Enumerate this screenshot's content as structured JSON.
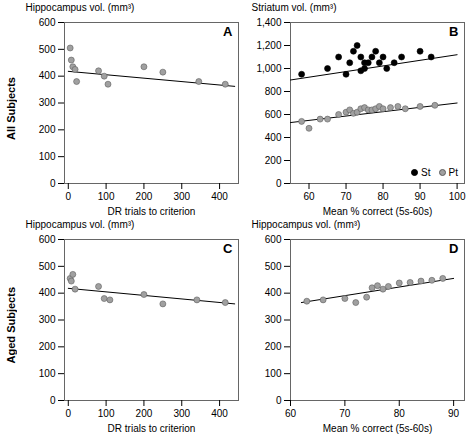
{
  "chart_data": [
    {
      "type": "scatter",
      "title": "A",
      "row_label": "All Subjects",
      "xlabel": "DR trials to criterion",
      "ylabel": "Hippocampus vol. (mm³)",
      "xlim": [
        -10,
        450
      ],
      "ylim": [
        0,
        600
      ],
      "xticks": [
        0,
        100,
        200,
        300,
        400
      ],
      "yticks": [
        0,
        100,
        200,
        300,
        400,
        500,
        600
      ],
      "series": [
        {
          "type": "scatter",
          "marker": "circle",
          "color": "#a0a0a0",
          "x": [
            5,
            8,
            12,
            18,
            22,
            80,
            95,
            105,
            200,
            250,
            345,
            415
          ],
          "values": [
            505,
            460,
            435,
            425,
            380,
            420,
            400,
            370,
            435,
            415,
            380,
            370
          ]
        },
        {
          "type": "line",
          "color": "#000000",
          "x": [
            0,
            440
          ],
          "values": [
            418,
            362
          ]
        }
      ]
    },
    {
      "type": "scatter",
      "title": "B",
      "xlabel": "Mean % correct (5s-60s)",
      "ylabel": "Striatum vol. (mm³)",
      "xlim": [
        55,
        102
      ],
      "ylim": [
        0,
        1400
      ],
      "xticks": [
        60,
        70,
        80,
        90,
        100
      ],
      "yticks": [
        0,
        200,
        400,
        600,
        800,
        1000,
        1200,
        1400
      ],
      "legend": "lower right",
      "series": [
        {
          "name": "St",
          "type": "scatter",
          "marker": "circle",
          "color": "#000000",
          "x": [
            58,
            65,
            68,
            70,
            71,
            72,
            73,
            74,
            74,
            75,
            75,
            76,
            77,
            78,
            79,
            80,
            81,
            83,
            85,
            90,
            93
          ],
          "values": [
            950,
            1000,
            1100,
            950,
            1050,
            1150,
            1200,
            980,
            1100,
            1000,
            1050,
            1050,
            1100,
            1150,
            1050,
            1100,
            1000,
            1050,
            1100,
            1150,
            1100
          ]
        },
        {
          "name": "Pt",
          "type": "scatter",
          "marker": "circle",
          "color": "#a0a0a0",
          "x": [
            58,
            60,
            63,
            65,
            68,
            70,
            71,
            72,
            73,
            74,
            75,
            76,
            77,
            78,
            79,
            80,
            82,
            84,
            86,
            90,
            94
          ],
          "values": [
            540,
            480,
            560,
            560,
            600,
            620,
            640,
            610,
            620,
            650,
            660,
            640,
            640,
            650,
            670,
            650,
            660,
            670,
            650,
            670,
            680
          ]
        },
        {
          "type": "line",
          "color": "#000000",
          "x": [
            55,
            100
          ],
          "values": [
            900,
            1120
          ]
        },
        {
          "type": "line",
          "color": "#000000",
          "x": [
            55,
            100
          ],
          "values": [
            530,
            700
          ]
        }
      ]
    },
    {
      "type": "scatter",
      "title": "C",
      "row_label": "Aged Subjects",
      "xlabel": "DR trials to criterion",
      "ylabel": "Hippocampus vol. (mm³)",
      "xlim": [
        -10,
        450
      ],
      "ylim": [
        0,
        600
      ],
      "xticks": [
        0,
        100,
        200,
        300,
        400
      ],
      "yticks": [
        0,
        100,
        200,
        300,
        400,
        500,
        600
      ],
      "series": [
        {
          "type": "scatter",
          "marker": "circle",
          "color": "#a0a0a0",
          "x": [
            5,
            8,
            12,
            18,
            80,
            95,
            110,
            200,
            250,
            340,
            415
          ],
          "values": [
            455,
            445,
            470,
            415,
            425,
            380,
            375,
            395,
            360,
            375,
            365
          ]
        },
        {
          "type": "line",
          "color": "#000000",
          "x": [
            0,
            440
          ],
          "values": [
            418,
            360
          ]
        }
      ]
    },
    {
      "type": "scatter",
      "title": "D",
      "xlabel": "Mean % correct (5s-60s)",
      "ylabel": "Hippocampus vol. (mm³)",
      "xlim": [
        60,
        92
      ],
      "ylim": [
        0,
        600
      ],
      "xticks": [
        60,
        70,
        80,
        90
      ],
      "yticks": [
        0,
        100,
        200,
        300,
        400,
        500,
        600
      ],
      "series": [
        {
          "type": "scatter",
          "marker": "circle",
          "color": "#a0a0a0",
          "x": [
            63,
            66,
            70,
            72,
            74,
            75,
            76,
            77,
            78,
            80,
            82,
            84,
            86,
            88
          ],
          "values": [
            370,
            375,
            380,
            365,
            385,
            420,
            428,
            415,
            425,
            438,
            440,
            445,
            448,
            455
          ]
        },
        {
          "type": "line",
          "color": "#000000",
          "x": [
            62,
            90
          ],
          "values": [
            365,
            455
          ]
        }
      ]
    }
  ]
}
